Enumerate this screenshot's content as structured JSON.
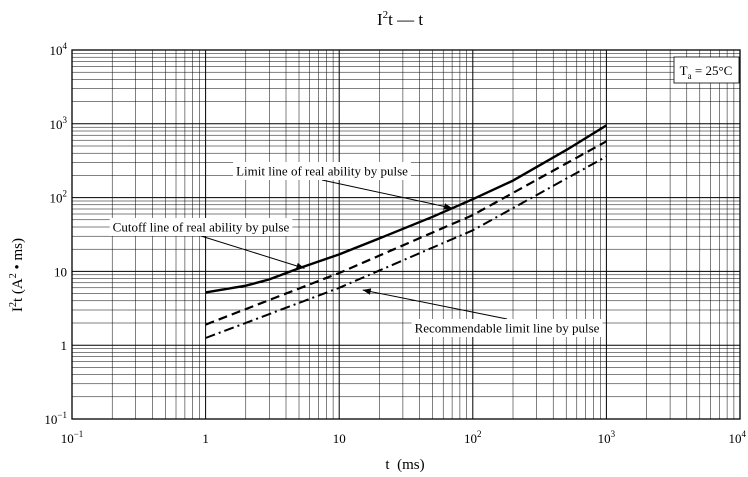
{
  "chart_data": {
    "type": "line",
    "title": {
      "base": "I",
      "sup": "2",
      "rest": "t — t"
    },
    "xlabel": "t  (ms)",
    "ylabel": {
      "base": "I",
      "sup": "2",
      "rest": "t  (A",
      "sup2": "2",
      "rest2": " • ms)"
    },
    "x_scale": "log",
    "y_scale": "log",
    "xlim": [
      0.1,
      10000
    ],
    "ylim": [
      0.1,
      10000
    ],
    "grid": true,
    "x_ticks": [
      {
        "value": 0.1,
        "base": "10",
        "exp": "−1"
      },
      {
        "value": 1,
        "base": "1",
        "exp": ""
      },
      {
        "value": 10,
        "base": "10",
        "exp": ""
      },
      {
        "value": 100,
        "base": "10",
        "exp": "2"
      },
      {
        "value": 1000,
        "base": "10",
        "exp": "3"
      },
      {
        "value": 10000,
        "base": "10",
        "exp": "4"
      }
    ],
    "y_ticks": [
      {
        "value": 0.1,
        "base": "10",
        "exp": "−1"
      },
      {
        "value": 1,
        "base": "1",
        "exp": ""
      },
      {
        "value": 10,
        "base": "10",
        "exp": ""
      },
      {
        "value": 100,
        "base": "10",
        "exp": "2"
      },
      {
        "value": 1000,
        "base": "10",
        "exp": "3"
      },
      {
        "value": 10000,
        "base": "10",
        "exp": "4"
      }
    ],
    "condition": {
      "base": "T",
      "sub": "a",
      "rest": " = 25°C"
    },
    "series": [
      {
        "key": "limit",
        "name": "Limit line of real ability by pulse",
        "style": "solid",
        "x": [
          1,
          2,
          3,
          5,
          10,
          20,
          50,
          100,
          200,
          500,
          1000
        ],
        "y": [
          5.2,
          6.4,
          7.8,
          11,
          17,
          28,
          55,
          95,
          170,
          440,
          950
        ]
      },
      {
        "key": "cutoff",
        "name": "Cutoff line of real ability by pulse",
        "style": "dashed",
        "x": [
          1,
          10,
          100,
          1000
        ],
        "y": [
          1.9,
          9.5,
          58,
          580
        ]
      },
      {
        "key": "recommend",
        "name": "Recommendable limit line by pulse",
        "style": "dashdot",
        "x": [
          1,
          10,
          100,
          1000
        ],
        "y": [
          1.25,
          6,
          36,
          360
        ]
      }
    ],
    "annotations": [
      {
        "series": "limit",
        "text": "Limit line of real ability by pulse"
      },
      {
        "series": "cutoff",
        "text": "Cutoff line of real ability by pulse"
      },
      {
        "series": "recommend",
        "text": "Recommendable limit line by pulse"
      }
    ]
  }
}
